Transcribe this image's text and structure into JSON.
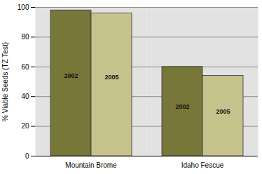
{
  "chart_data": {
    "type": "bar",
    "categories": [
      "Mountain Brome",
      "Idaho Fescue"
    ],
    "series": [
      {
        "name": "2002",
        "color": "#77773a",
        "values": [
          98,
          60
        ]
      },
      {
        "name": "2005",
        "color": "#c6c28c",
        "values": [
          96,
          54
        ]
      }
    ],
    "y_label": "% Viable Seeds (TZ Test)",
    "ylim": [
      0,
      100
    ],
    "yticks": [
      0,
      20,
      40,
      60,
      80,
      100
    ],
    "grid": true
  }
}
